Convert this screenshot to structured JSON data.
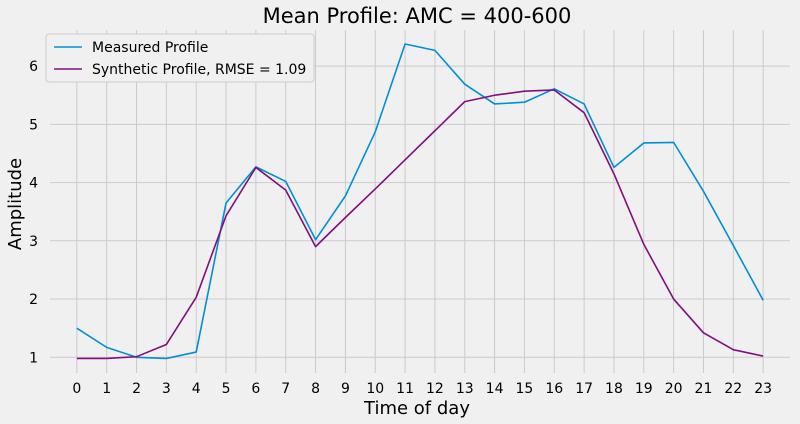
{
  "chart_data": {
    "type": "line",
    "title": "Mean Profile: AMC = 400-600",
    "xlabel": "Time of day",
    "ylabel": "Amplitude",
    "x": [
      0,
      1,
      2,
      3,
      4,
      5,
      6,
      7,
      8,
      9,
      10,
      11,
      12,
      13,
      14,
      15,
      16,
      17,
      18,
      19,
      20,
      21,
      22,
      23
    ],
    "xticks": [
      "0",
      "1",
      "2",
      "3",
      "4",
      "5",
      "6",
      "7",
      "8",
      "9",
      "10",
      "11",
      "12",
      "13",
      "14",
      "15",
      "16",
      "17",
      "18",
      "19",
      "20",
      "21",
      "22",
      "23"
    ],
    "yticks": [
      "1",
      "2",
      "3",
      "4",
      "5",
      "6"
    ],
    "xlim": [
      -0.9,
      23.9
    ],
    "ylim": [
      0.73,
      6.62
    ],
    "grid": true,
    "legend_position": "top-left",
    "series": [
      {
        "name": "Measured Profile",
        "color": "#008fd5",
        "values": [
          1.5,
          1.17,
          1.0,
          0.98,
          1.09,
          3.65,
          4.27,
          4.02,
          3.02,
          3.77,
          4.87,
          6.38,
          6.27,
          5.69,
          5.35,
          5.38,
          5.61,
          5.35,
          4.26,
          4.68,
          4.69,
          3.85,
          2.92,
          1.98
        ]
      },
      {
        "name": "Synthetic Profile, RMSE = 1.09",
        "color": "#810f7c",
        "values": [
          0.98,
          0.98,
          1.01,
          1.22,
          2.03,
          3.43,
          4.26,
          3.87,
          2.9,
          3.4,
          3.89,
          4.39,
          4.89,
          5.39,
          5.5,
          5.57,
          5.59,
          5.2,
          4.15,
          2.94,
          2.0,
          1.42,
          1.13,
          1.02
        ]
      }
    ]
  }
}
